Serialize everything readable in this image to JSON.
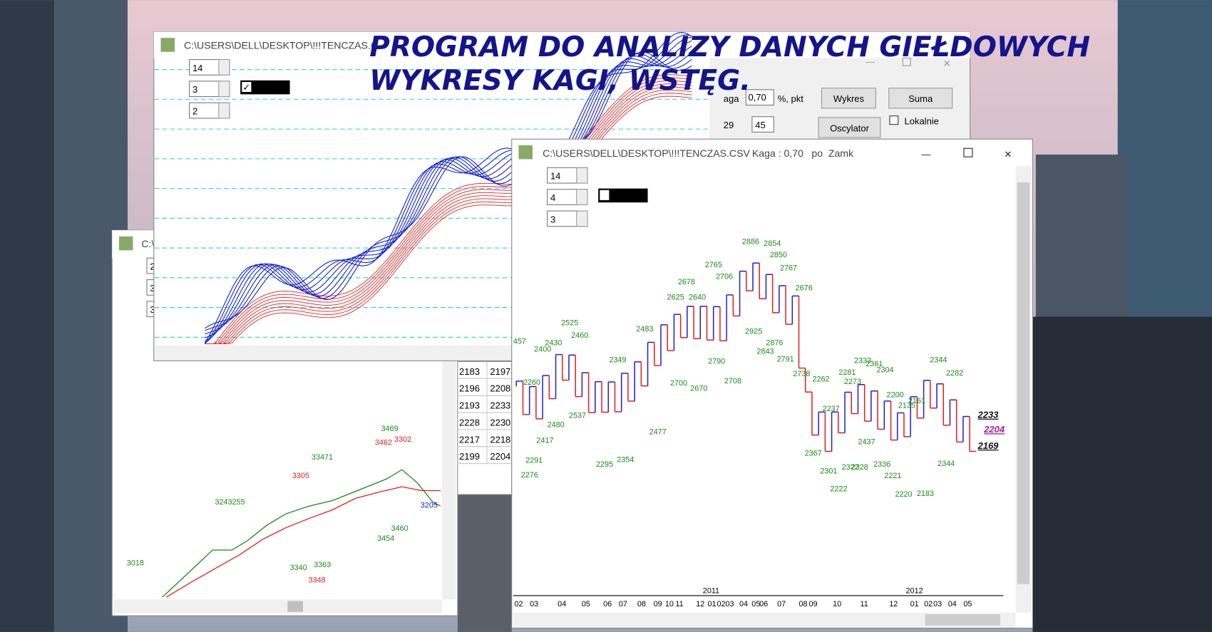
{
  "headline": {
    "line1": "PROGRAM DO ANALIZY DANYCH GIEŁDOWYCH",
    "line2": "WYKRESY KAGI, WSTĘG."
  },
  "window_bands": {
    "title": "C:\\USERS\\DELL\\DESKTOP\\!!!TENCZAS.C",
    "spinners": [
      "14",
      "3",
      "2"
    ]
  },
  "toolbar": {
    "kaga_label": "aga",
    "kaga_value": "0,70",
    "unit": "%, pkt",
    "button_chart": "Wykres",
    "button_sum": "Suma",
    "field1": "29",
    "field2": "45",
    "button_oscillator": "Oscylator",
    "checkbox_local": "Lokalnie"
  },
  "window_lines": {
    "title": "C:\\",
    "spinners": [
      "2",
      "3",
      "3"
    ],
    "labels": [
      "3469",
      "3302",
      "3462",
      "33471",
      "3305",
      "3243255",
      "3018",
      "3460",
      "3454",
      "3340",
      "3363",
      "3348",
      "3205"
    ]
  },
  "table": {
    "rows": [
      [
        "2183",
        "2197"
      ],
      [
        "2196",
        "2208"
      ],
      [
        "2193",
        "2233"
      ],
      [
        "2228",
        "2230"
      ],
      [
        "2217",
        "2218"
      ],
      [
        "2199",
        "2204"
      ]
    ]
  },
  "window_kagi": {
    "title": "C:\\USERS\\DELL\\DESKTOP\\!!!TENCZAS.CSV",
    "kaga": "Kaga : 0,70",
    "mode": "po  Zamk",
    "spinners": [
      "14",
      "4",
      "3"
    ],
    "labels": [
      "457",
      "2400",
      "2430",
      "2525",
      "2460",
      "2260",
      "2480",
      "2537",
      "2417",
      "2291",
      "2276",
      "2349",
      "2483",
      "2295",
      "2354",
      "2477",
      "2678",
      "2625",
      "2640",
      "2765",
      "2706",
      "2700",
      "2670",
      "2790",
      "2708",
      "2925",
      "2886",
      "2854",
      "2850",
      "2767",
      "2676",
      "2876",
      "2843",
      "2791",
      "2738",
      "2262",
      "2237",
      "2367",
      "2301",
      "2322",
      "2328",
      "2222",
      "2333",
      "2361",
      "2281",
      "2304",
      "2273",
      "2437",
      "2336",
      "2221",
      "2200",
      "2135",
      "2161",
      "2220",
      "2183",
      "2344",
      "2282",
      "2344"
    ],
    "last_values": [
      "2233",
      "2204",
      "2169"
    ],
    "months": [
      "02",
      "03",
      "04",
      "05",
      "06",
      "07",
      "08",
      "09",
      "10",
      "11",
      "12",
      "01",
      "02",
      "03",
      "04",
      "05",
      "06",
      "07",
      "08",
      "09",
      "10",
      "11",
      "12",
      "01",
      "02",
      "03",
      "04",
      "05"
    ],
    "years": [
      "2011",
      "2012"
    ]
  }
}
